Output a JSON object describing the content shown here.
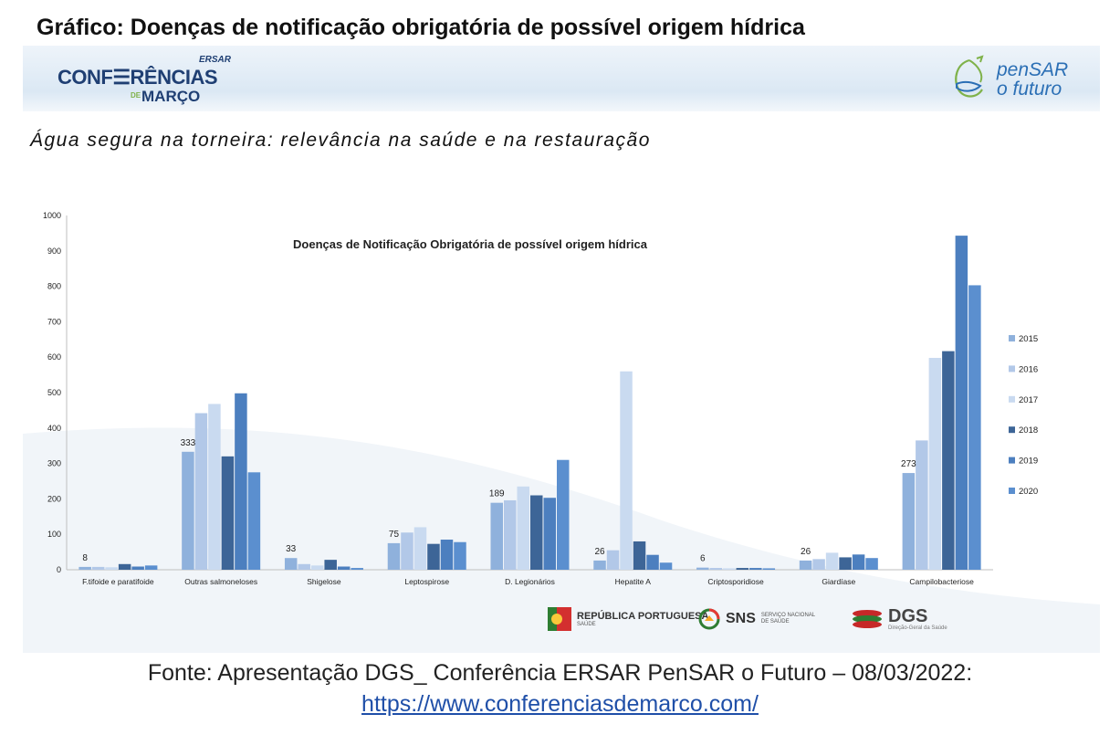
{
  "page_title": "Gráfico: Doenças de notificação obrigatória de possível origem hídrica",
  "slide": {
    "logo_left": {
      "ersar": "ERSAR",
      "line1": "CONF☰RÊNCIAS",
      "line2_prefix": "DE",
      "line2": "MARÇO"
    },
    "logo_right": {
      "line1": "penSAR",
      "line2": "o futuro"
    },
    "subtitle": "Água segura na torneira: relevância na saúde e na restauração",
    "footer_logos": [
      {
        "name": "REPÚBLICA PORTUGUESA",
        "sub": "SAÚDE"
      },
      {
        "name": "SNS",
        "sub": "SERVIÇO NACIONAL DE SAÚDE"
      },
      {
        "name": "DGS",
        "sub": "Direção-Geral da Saúde"
      }
    ]
  },
  "source": {
    "text": "Fonte: Apresentação DGS_ Conferência ERSAR PenSAR o Futuro – 08/03/2022:",
    "link": "https://www.conferenciasdemarco.com/"
  },
  "colors": {
    "2015": "#8fb1dc",
    "2016": "#b2c8e8",
    "2017": "#c9daf0",
    "2018": "#3d6597",
    "2019": "#4c7fbf",
    "2020": "#5b8fcf"
  },
  "chart_data": {
    "type": "bar",
    "title": "Doenças de Notificação Obrigatória de possível origem hídrica",
    "categories": [
      "F.tifoide e paratifoide",
      "Outras salmoneloses",
      "Shigelose",
      "Leptospirose",
      "D. Legionários",
      "Hepatite A",
      "Criptosporidiose",
      "Giardíase",
      "Campilobacteriose"
    ],
    "series": [
      {
        "name": "2015",
        "values": [
          8,
          333,
          33,
          75,
          189,
          26,
          6,
          26,
          273
        ]
      },
      {
        "name": "2016",
        "values": [
          8,
          442,
          16,
          105,
          196,
          55,
          5,
          30,
          365
        ]
      },
      {
        "name": "2017",
        "values": [
          7,
          468,
          12,
          120,
          235,
          560,
          4,
          48,
          598
        ]
      },
      {
        "name": "2018",
        "values": [
          16,
          320,
          28,
          73,
          210,
          80,
          5,
          35,
          617
        ]
      },
      {
        "name": "2019",
        "values": [
          9,
          498,
          9,
          85,
          203,
          42,
          5,
          43,
          943
        ]
      },
      {
        "name": "2020",
        "values": [
          12,
          275,
          5,
          78,
          310,
          20,
          4,
          33,
          803
        ]
      }
    ],
    "data_labels": [
      {
        "category": "F.tifoide e paratifoide",
        "series": "2015",
        "text": "8"
      },
      {
        "category": "Outras salmoneloses",
        "series": "2015",
        "text": "333"
      },
      {
        "category": "Shigelose",
        "series": "2015",
        "text": "33"
      },
      {
        "category": "Leptospirose",
        "series": "2015",
        "text": "75"
      },
      {
        "category": "D. Legionários",
        "series": "2015",
        "text": "189"
      },
      {
        "category": "Hepatite A",
        "series": "2015",
        "text": "26"
      },
      {
        "category": "Criptosporidiose",
        "series": "2015",
        "text": "6"
      },
      {
        "category": "Giardíase",
        "series": "2015",
        "text": "26"
      },
      {
        "category": "Campilobacteriose",
        "series": "2015",
        "text": "273"
      }
    ],
    "ylim": [
      0,
      1000
    ],
    "yticks": [
      0,
      100,
      200,
      300,
      400,
      500,
      600,
      700,
      800,
      900,
      1000
    ],
    "grid": false,
    "legend_position": "right"
  }
}
